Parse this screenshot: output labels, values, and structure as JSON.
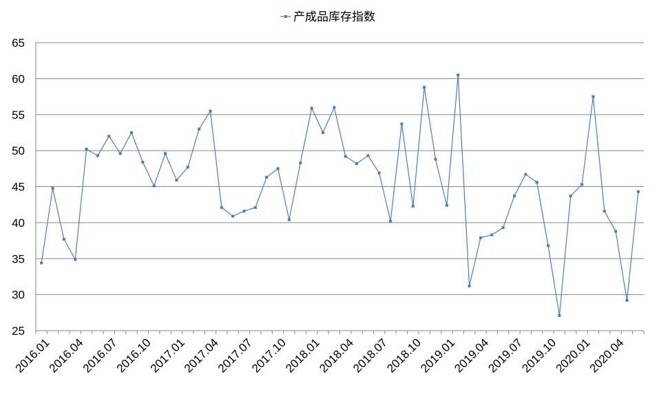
{
  "chart_data": {
    "type": "line",
    "categories": [
      "2016.01",
      null,
      null,
      "2016.04",
      null,
      null,
      "2016.07",
      null,
      null,
      "2016.10",
      null,
      null,
      "2017.01",
      null,
      null,
      "2017.04",
      null,
      null,
      "2017.07",
      null,
      null,
      "2017.10",
      null,
      null,
      "2018.01",
      null,
      null,
      "2018.04",
      null,
      null,
      "2018.07",
      null,
      null,
      "2018.10",
      null,
      null,
      "2019.01",
      null,
      null,
      "2019.04",
      null,
      null,
      "2019.07",
      null,
      null,
      "2019.10",
      null,
      null,
      "2020.01",
      null,
      null,
      "2020.04",
      null,
      null
    ],
    "series": [
      {
        "name": "产成品库存指数",
        "color": "#4a7ebb",
        "values": [
          34.4,
          44.8,
          37.7,
          34.9,
          50.2,
          49.3,
          52.0,
          49.6,
          52.5,
          48.4,
          45.1,
          49.6,
          45.9,
          47.7,
          53.0,
          55.5,
          42.1,
          40.9,
          41.6,
          42.1,
          46.3,
          47.5,
          40.4,
          48.3,
          55.9,
          52.5,
          56.0,
          49.2,
          48.2,
          49.3,
          46.9,
          40.2,
          53.7,
          42.3,
          58.8,
          48.8,
          42.4,
          60.5,
          31.2,
          37.9,
          38.3,
          39.3,
          43.7,
          46.7,
          45.6,
          36.8,
          27.1,
          43.7,
          45.3,
          57.5,
          41.6,
          38.8,
          29.2,
          44.3
        ]
      }
    ],
    "ylim": [
      25,
      65
    ],
    "yticks": [
      25,
      30,
      35,
      40,
      45,
      50,
      55,
      60,
      65
    ],
    "grid": true,
    "legend": "top"
  }
}
